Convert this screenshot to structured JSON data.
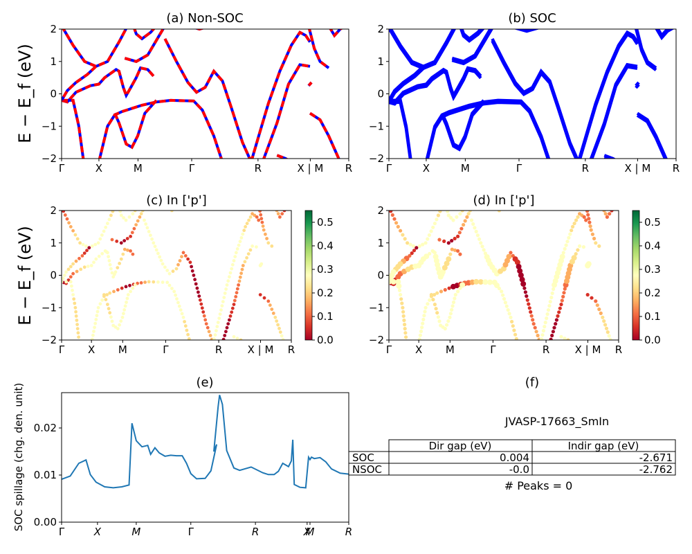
{
  "panels": {
    "a": {
      "title": "(a) Non-SOC"
    },
    "b": {
      "title": "(b) SOC"
    },
    "c": {
      "title": "(c)  In ['p']"
    },
    "d": {
      "title": "(d) In ['p']"
    },
    "e": {
      "title": "(e)"
    },
    "f": {
      "title": "(f)"
    }
  },
  "band_ylabel": "E − E_f (eV)",
  "band_yticks": [
    "2",
    "1",
    "0",
    "−1",
    "−2"
  ],
  "kpath_labels": [
    "Γ",
    "X",
    "M",
    "Γ",
    "R",
    "X | M",
    "R"
  ],
  "colorbar_ticks": [
    "0.5",
    "0.4",
    "0.3",
    "0.2",
    "0.1",
    "0.0"
  ],
  "colors": {
    "nonsoc_solid": "#0000ff",
    "nonsoc_dash": "#ff0000",
    "soc": "#0000ff",
    "spillage": "#1f77b4"
  },
  "chart_data": [
    {
      "type": "line",
      "title": "(e)",
      "ylabel": "SOC spillage (chg. den. unit)",
      "xticks": [
        "Γ",
        "X",
        "M",
        "Γ",
        "R",
        "X",
        "M",
        "R"
      ],
      "yticks": [
        "0.00",
        "0.01",
        "0.02"
      ],
      "ylim": [
        0,
        0.0275
      ],
      "x": [
        0,
        0.03,
        0.06,
        0.085,
        0.1,
        0.12,
        0.15,
        0.18,
        0.21,
        0.235,
        0.245,
        0.26,
        0.28,
        0.3,
        0.31,
        0.325,
        0.34,
        0.36,
        0.38,
        0.4,
        0.42,
        0.435,
        0.45,
        0.47,
        0.5,
        0.52,
        0.54,
        0.53,
        0.545,
        0.55,
        0.56,
        0.575,
        0.6,
        0.62,
        0.66,
        0.7,
        0.72,
        0.74,
        0.755,
        0.77,
        0.79,
        0.8,
        0.805,
        0.81,
        0.83,
        0.85,
        0.86,
        0.865,
        0.87,
        0.88,
        0.9,
        0.92,
        0.94,
        0.97,
        1.0
      ],
      "values": [
        0.0091,
        0.0098,
        0.0125,
        0.0132,
        0.0101,
        0.0085,
        0.0075,
        0.0073,
        0.0075,
        0.0079,
        0.021,
        0.0173,
        0.016,
        0.0163,
        0.0144,
        0.0158,
        0.0147,
        0.014,
        0.0142,
        0.0141,
        0.0141,
        0.0125,
        0.0103,
        0.0092,
        0.0093,
        0.0109,
        0.0165,
        0.015,
        0.0245,
        0.027,
        0.025,
        0.0152,
        0.0115,
        0.011,
        0.0117,
        0.0105,
        0.0101,
        0.0101,
        0.0108,
        0.0125,
        0.0118,
        0.013,
        0.0175,
        0.008,
        0.0074,
        0.0073,
        0.0138,
        0.0133,
        0.0138,
        0.0135,
        0.0137,
        0.0128,
        0.0113,
        0.0104,
        0.0102
      ],
      "grid": false
    },
    {
      "type": "table",
      "title": "JVASP-17663_SmIn",
      "columns": [
        "Dir gap (eV)",
        "Indir gap (eV)"
      ],
      "rows": [
        {
          "label": "SOC",
          "dir": "0.004",
          "indir": "-2.671"
        },
        {
          "label": "NSOC",
          "dir": "-0.0",
          "indir": "-2.762"
        }
      ],
      "footer": "# Peaks = 0"
    }
  ]
}
